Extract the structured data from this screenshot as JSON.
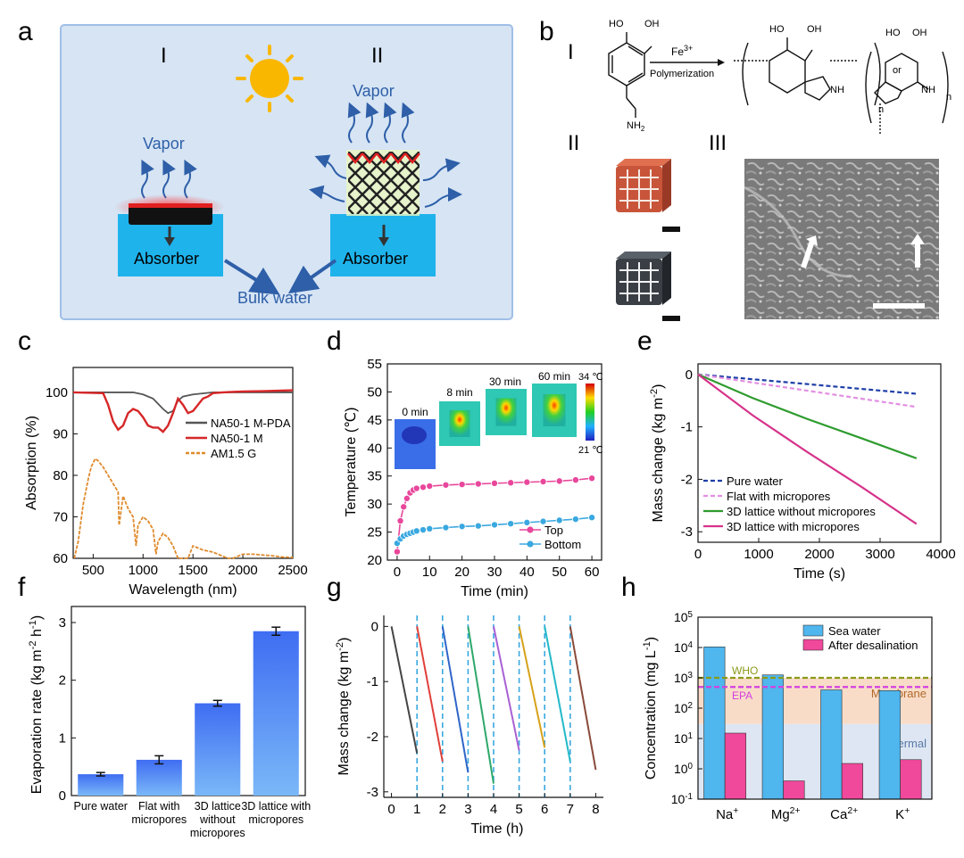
{
  "panels": {
    "a": {
      "letter": "a",
      "roman_left": "I",
      "roman_right": "II",
      "vapor_left": "Vapor",
      "vapor_right": "Vapor",
      "absorber_left": "Absorber",
      "absorber_right": "Absorber",
      "bulk_water": "Bulk water",
      "colors": {
        "background": "#d6e4f4",
        "water": "#1fb3ec",
        "arrow": "#2e5fa8",
        "sun": "#f9b700",
        "lattice": "#6cc24a"
      }
    },
    "b": {
      "letter": "b",
      "roman_1": "I",
      "roman_2": "II",
      "roman_3": "III",
      "reagent": "Fe3+",
      "reagent_base": "Fe",
      "reagent_sup": "3+",
      "reaction": "Polymerization",
      "or": "or",
      "n": "n",
      "oh": "HO",
      "oh2": "OH",
      "nh": "NH",
      "nh2": "NH2",
      "nh2_base": "NH",
      "nh2_sub": "2"
    },
    "c": {
      "letter": "c"
    },
    "d": {
      "letter": "d",
      "inset_times": [
        "0 min",
        "8 min",
        "30 min",
        "60 min"
      ],
      "colorbar_max": "34 ℃",
      "colorbar_min": "21 ℃"
    },
    "e": {
      "letter": "e"
    },
    "f": {
      "letter": "f"
    },
    "g": {
      "letter": "g"
    },
    "h": {
      "letter": "h",
      "who": "WHO",
      "epa": "EPA",
      "membrane": "Membrane",
      "thermal": "Thermal"
    }
  },
  "chart_data": [
    {
      "id": "c",
      "type": "line",
      "xlabel": "Wavelength (nm)",
      "ylabel": "Absorption (%)",
      "xlim": [
        300,
        2500
      ],
      "ylim": [
        60,
        106
      ],
      "xticks": [
        500,
        1000,
        1500,
        2000,
        2500
      ],
      "yticks": [
        60,
        70,
        80,
        90,
        100
      ],
      "legend_position": "right",
      "series": [
        {
          "name": "NA50-1 M-PDA",
          "color": "#555555",
          "x": [
            300,
            700,
            900,
            1000,
            1100,
            1200,
            1250,
            1300,
            1350,
            1400,
            1500,
            1700,
            2000,
            2500
          ],
          "y": [
            100,
            100,
            100,
            99.5,
            98.5,
            96,
            95,
            95.5,
            98,
            99,
            99.5,
            100,
            100,
            100
          ]
        },
        {
          "name": "NA50-1 M",
          "color": "#d62728",
          "x": [
            300,
            600,
            650,
            700,
            750,
            800,
            850,
            900,
            950,
            1000,
            1050,
            1100,
            1150,
            1200,
            1250,
            1300,
            1350,
            1400,
            1450,
            1500,
            1550,
            1600,
            1650,
            1700,
            1800,
            2000,
            2200,
            2500
          ],
          "y": [
            100,
            99.8,
            97,
            93,
            91,
            92,
            95,
            96,
            95.5,
            94,
            92,
            91.5,
            91.5,
            90.5,
            92,
            95,
            98.5,
            97,
            95,
            95.5,
            97,
            98.5,
            99,
            99.8,
            100,
            100.2,
            100.3,
            100.5
          ]
        },
        {
          "name": "AM1.5 G",
          "color": "#e08a2c",
          "x": [
            310,
            350,
            400,
            450,
            480,
            520,
            550,
            600,
            650,
            700,
            750,
            760,
            800,
            850,
            900,
            930,
            950,
            1000,
            1050,
            1100,
            1130,
            1150,
            1200,
            1250,
            1300,
            1350,
            1400,
            1450,
            1500,
            1550,
            1600,
            1700,
            1800,
            1850,
            1900,
            1950,
            2000,
            2100,
            2200,
            2300,
            2400,
            2500
          ],
          "y": [
            60,
            64,
            73,
            79,
            82,
            84,
            83.5,
            82,
            80,
            78,
            76,
            68,
            75,
            72,
            70,
            63,
            68,
            70,
            69,
            67,
            61,
            64,
            66,
            65,
            63,
            60,
            60,
            60,
            63,
            62.5,
            62,
            61.5,
            60.5,
            60,
            60,
            60.5,
            61,
            61,
            60.8,
            60.6,
            60.3,
            60.2
          ]
        }
      ]
    },
    {
      "id": "d",
      "type": "line",
      "xlabel": "Time (min)",
      "ylabel": "Temperature (℃)",
      "xlim": [
        -3,
        63
      ],
      "ylim": [
        20,
        55
      ],
      "xticks": [
        0,
        10,
        20,
        30,
        40,
        50,
        60
      ],
      "yticks": [
        20,
        25,
        30,
        35,
        40,
        45,
        50,
        55
      ],
      "legend_position": "bottom-right",
      "series": [
        {
          "name": "Top",
          "color": "#e8479b",
          "x": [
            0,
            1,
            2,
            3,
            4,
            5,
            6,
            8,
            10,
            15,
            20,
            25,
            30,
            35,
            40,
            45,
            50,
            55,
            60
          ],
          "y": [
            21.5,
            27,
            29.5,
            31,
            32,
            32.5,
            32.8,
            33,
            33.2,
            33.4,
            33.5,
            33.6,
            33.7,
            33.8,
            33.9,
            34,
            34.1,
            34.3,
            34.6
          ]
        },
        {
          "name": "Bottom",
          "color": "#3aa8e0",
          "x": [
            0,
            1,
            2,
            3,
            4,
            5,
            6,
            8,
            10,
            15,
            20,
            25,
            30,
            35,
            40,
            45,
            50,
            55,
            60
          ],
          "y": [
            23,
            23.8,
            24.3,
            24.6,
            24.8,
            25,
            25.2,
            25.4,
            25.6,
            25.8,
            26,
            26.1,
            26.3,
            26.5,
            26.7,
            26.9,
            27.1,
            27.3,
            27.6
          ]
        }
      ]
    },
    {
      "id": "e",
      "type": "line",
      "xlabel": "Time (s)",
      "ylabel": "Mass change (kg m-2)",
      "ylabel_base": "Mass change (kg m",
      "ylabel_sup": "-2",
      "ylabel_end": ")",
      "xlim": [
        0,
        4000
      ],
      "ylim": [
        -3.2,
        0.2
      ],
      "xticks": [
        0,
        1000,
        2000,
        3000,
        4000
      ],
      "yticks": [
        -3,
        -2,
        -1,
        0
      ],
      "legend_position": "bottom-left",
      "series": [
        {
          "name": "Pure water",
          "color": "#1f3fa8",
          "dash": true,
          "x": [
            0,
            3600
          ],
          "y": [
            0,
            -0.37
          ]
        },
        {
          "name": "Flat with micropores",
          "color": "#e28fe2",
          "dash": true,
          "x": [
            0,
            3600
          ],
          "y": [
            0,
            -0.62
          ]
        },
        {
          "name": "3D lattice without micropores",
          "color": "#2e9b2e",
          "x": [
            0,
            900,
            1800,
            2700,
            3600
          ],
          "y": [
            0,
            -0.45,
            -0.85,
            -1.22,
            -1.6
          ]
        },
        {
          "name": "3D lattice with micropores",
          "color": "#d6338a",
          "x": [
            0,
            900,
            1800,
            2700,
            3600
          ],
          "y": [
            0,
            -0.78,
            -1.48,
            -2.15,
            -2.85
          ]
        }
      ]
    },
    {
      "id": "f",
      "type": "bar",
      "xlabel": "",
      "ylabel": "Evaporation rate (kg m-2 h-1)",
      "ylabel_base": "Evaporation rate (kg m",
      "ylabel_sup1": "-2",
      "ylabel_mid": " h",
      "ylabel_sup2": "-1",
      "ylabel_end": ")",
      "ylim": [
        0,
        3
      ],
      "yticks": [
        0,
        1,
        2,
        3
      ],
      "categories": [
        [
          "Pure water"
        ],
        [
          "Flat with",
          "micropores"
        ],
        [
          "3D lattice",
          "without",
          "micropores"
        ],
        [
          "3D lattice with",
          "micropores"
        ]
      ],
      "values": [
        0.37,
        0.62,
        1.6,
        2.85
      ],
      "errors": [
        0.03,
        0.07,
        0.05,
        0.07
      ],
      "color": "#3f6df2"
    },
    {
      "id": "g",
      "type": "line",
      "xlabel": "Time (h)",
      "ylabel": "Mass change (kg m-2)",
      "ylabel_base": "Mass change (kg m",
      "ylabel_sup": "-2",
      "ylabel_end": ")",
      "xlim": [
        -0.3,
        8.3
      ],
      "ylim": [
        -3.1,
        0.2
      ],
      "xticks": [
        0,
        1,
        2,
        3,
        4,
        5,
        6,
        7,
        8
      ],
      "yticks": [
        -3,
        -2,
        -1,
        0
      ],
      "cycle_lines": [
        1,
        2,
        3,
        4,
        5,
        6,
        7
      ],
      "series": [
        {
          "name": "",
          "color": "#444444",
          "x": [
            0,
            1
          ],
          "y": [
            0,
            -2.3
          ]
        },
        {
          "name": "",
          "color": "#e0403a",
          "x": [
            1,
            2
          ],
          "y": [
            0,
            -2.45
          ]
        },
        {
          "name": "",
          "color": "#2f66c9",
          "x": [
            2,
            3
          ],
          "y": [
            0,
            -2.65
          ]
        },
        {
          "name": "",
          "color": "#2ea86a",
          "x": [
            3,
            4
          ],
          "y": [
            0,
            -2.85
          ]
        },
        {
          "name": "",
          "color": "#a861d4",
          "x": [
            4,
            5
          ],
          "y": [
            0,
            -2.25
          ]
        },
        {
          "name": "",
          "color": "#d7a21a",
          "x": [
            5,
            6
          ],
          "y": [
            0,
            -2.2
          ]
        },
        {
          "name": "",
          "color": "#23b9c9",
          "x": [
            6,
            7
          ],
          "y": [
            0,
            -2.45
          ]
        },
        {
          "name": "",
          "color": "#8a4a3a",
          "x": [
            7,
            8
          ],
          "y": [
            0,
            -2.6
          ]
        }
      ]
    },
    {
      "id": "h",
      "type": "bar",
      "xlabel": "",
      "ylabel": "Concentration (mg L-1)",
      "ylabel_base": "Concentration (mg L",
      "ylabel_sup": "-1",
      "ylabel_end": ")",
      "yscale": "log",
      "ylim": [
        0.1,
        100000
      ],
      "ytick_exponents": [
        -1,
        0,
        1,
        2,
        3,
        4,
        5
      ],
      "ytick_base": "10",
      "categories": [
        {
          "base": "Na",
          "sup": "+"
        },
        {
          "base": "Mg",
          "sup": "2+"
        },
        {
          "base": "Ca",
          "sup": "2+"
        },
        {
          "base": "K",
          "sup": "+"
        }
      ],
      "legend_position": "top-right",
      "series": [
        {
          "name": "Sea water",
          "color": "#4fb6ee",
          "values": [
            10500,
            1250,
            400,
            380
          ]
        },
        {
          "name": "After desalination",
          "color": "#f0489b",
          "values": [
            15,
            0.4,
            1.5,
            2
          ]
        }
      ],
      "reference_lines": [
        {
          "name": "WHO",
          "value": 1000,
          "color": "#8a9a1a"
        },
        {
          "name": "EPA",
          "value": 500,
          "color": "#d43ee0"
        }
      ],
      "bands": [
        {
          "name": "Membrane",
          "from": 30,
          "to": 1000,
          "color": "#f9dcc8"
        },
        {
          "name": "Thermal",
          "from": 0.1,
          "to": 30,
          "color": "#dde6f2"
        }
      ]
    }
  ]
}
